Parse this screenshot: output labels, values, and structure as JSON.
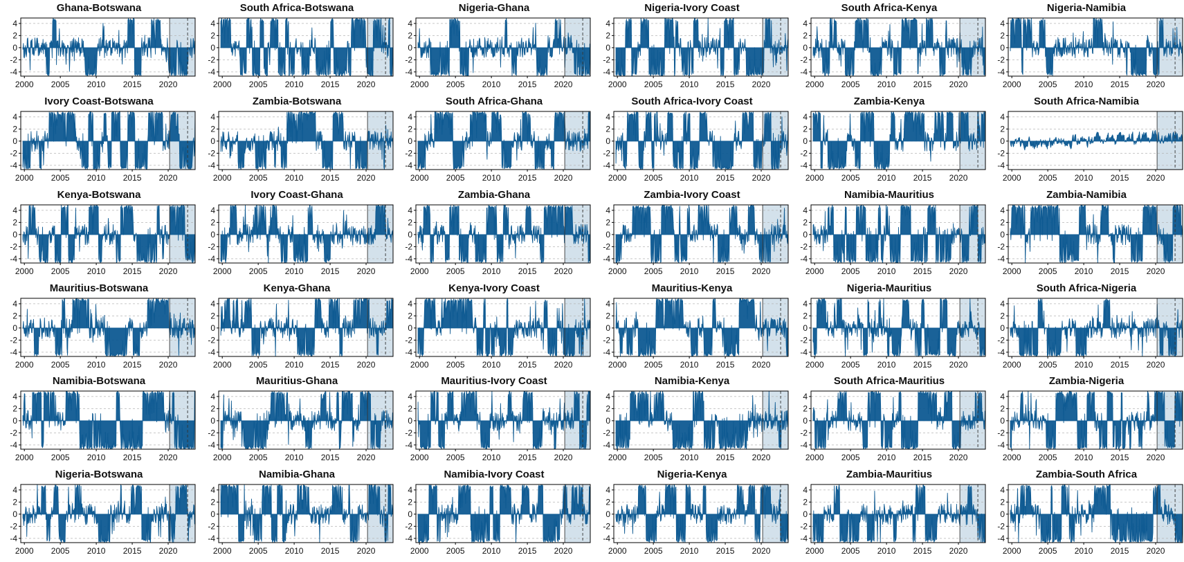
{
  "colors": {
    "series": "#0e5a92",
    "shade": "#d3e1eb",
    "grid": "#b5b5b5",
    "frame": "#000000",
    "vline": "#333333"
  },
  "chart_data": [
    {
      "type": "area",
      "title": "Ghana-Botswana",
      "seed": 11,
      "regime": 0.3
    },
    {
      "type": "area",
      "title": "South Africa-Botswana",
      "seed": 12,
      "regime": 0.85
    },
    {
      "type": "area",
      "title": "Nigeria-Ghana",
      "seed": 13,
      "regime": 0.45
    },
    {
      "type": "area",
      "title": "Nigeria-Ivory Coast",
      "seed": 14,
      "regime": 0.55
    },
    {
      "type": "area",
      "title": "South Africa-Kenya",
      "seed": 15,
      "regime": 0.75
    },
    {
      "type": "area",
      "title": "Nigeria-Namibia",
      "seed": 16,
      "regime": 0.5
    },
    {
      "type": "area",
      "title": "Ivory Coast-Botswana",
      "seed": 21,
      "regime": 0.65
    },
    {
      "type": "area",
      "title": "Zambia-Botswana",
      "seed": 22,
      "regime": 0.35
    },
    {
      "type": "area",
      "title": "South Africa-Ghana",
      "seed": 23,
      "regime": 0.7
    },
    {
      "type": "area",
      "title": "South Africa-Ivory Coast",
      "seed": 24,
      "regime": 0.75
    },
    {
      "type": "area",
      "title": "Zambia-Kenya",
      "seed": 25,
      "regime": 0.55
    },
    {
      "type": "area",
      "title": "South Africa-Namibia",
      "seed": 26,
      "regime": 0.0
    },
    {
      "type": "area",
      "title": "Kenya-Botswana",
      "seed": 31,
      "regime": 0.55
    },
    {
      "type": "area",
      "title": "Ivory Coast-Ghana",
      "seed": 32,
      "regime": 0.5
    },
    {
      "type": "area",
      "title": "Zambia-Ghana",
      "seed": 33,
      "regime": 0.6
    },
    {
      "type": "area",
      "title": "Zambia-Ivory Coast",
      "seed": 34,
      "regime": 0.55
    },
    {
      "type": "area",
      "title": "Namibia-Mauritius",
      "seed": 35,
      "regime": 0.6
    },
    {
      "type": "area",
      "title": "Zambia-Namibia",
      "seed": 36,
      "regime": 0.65
    },
    {
      "type": "area",
      "title": "Mauritius-Botswana",
      "seed": 41,
      "regime": 0.5
    },
    {
      "type": "area",
      "title": "Kenya-Ghana",
      "seed": 42,
      "regime": 0.5
    },
    {
      "type": "area",
      "title": "Kenya-Ivory Coast",
      "seed": 43,
      "regime": 0.75
    },
    {
      "type": "area",
      "title": "Mauritius-Kenya",
      "seed": 44,
      "regime": 0.55
    },
    {
      "type": "area",
      "title": "Nigeria-Mauritius",
      "seed": 45,
      "regime": 0.6
    },
    {
      "type": "area",
      "title": "South Africa-Nigeria",
      "seed": 46,
      "regime": 0.5
    },
    {
      "type": "area",
      "title": "Namibia-Botswana",
      "seed": 51,
      "regime": 0.9
    },
    {
      "type": "area",
      "title": "Mauritius-Ghana",
      "seed": 52,
      "regime": 0.55
    },
    {
      "type": "area",
      "title": "Mauritius-Ivory Coast",
      "seed": 53,
      "regime": 0.55
    },
    {
      "type": "area",
      "title": "Namibia-Kenya",
      "seed": 54,
      "regime": 0.65
    },
    {
      "type": "area",
      "title": "South Africa-Mauritius",
      "seed": 55,
      "regime": 0.7
    },
    {
      "type": "area",
      "title": "Zambia-Nigeria",
      "seed": 56,
      "regime": 0.45
    },
    {
      "type": "area",
      "title": "Nigeria-Botswana",
      "seed": 61,
      "regime": 0.45
    },
    {
      "type": "area",
      "title": "Namibia-Ghana",
      "seed": 62,
      "regime": 0.6
    },
    {
      "type": "area",
      "title": "Namibia-Ivory Coast",
      "seed": 63,
      "regime": 0.65
    },
    {
      "type": "area",
      "title": "Nigeria-Kenya",
      "seed": 64,
      "regime": 0.55
    },
    {
      "type": "area",
      "title": "Zambia-Mauritius",
      "seed": 65,
      "regime": 0.55
    },
    {
      "type": "area",
      "title": "Zambia-South Africa",
      "seed": 66,
      "regime": 0.55
    }
  ],
  "axis": {
    "x_ticks": [
      "2000",
      "2005",
      "2010",
      "2015",
      "2020"
    ],
    "y_ticks": [
      "4",
      "2",
      "0",
      "-2",
      "-4"
    ],
    "x_range": [
      1999.5,
      2023.75
    ],
    "y_range": [
      -4.7,
      4.9
    ],
    "shaded_period": [
      2020.2,
      2023.75
    ],
    "dashed_at": 2022.7,
    "grid": "horizontal dashed"
  }
}
